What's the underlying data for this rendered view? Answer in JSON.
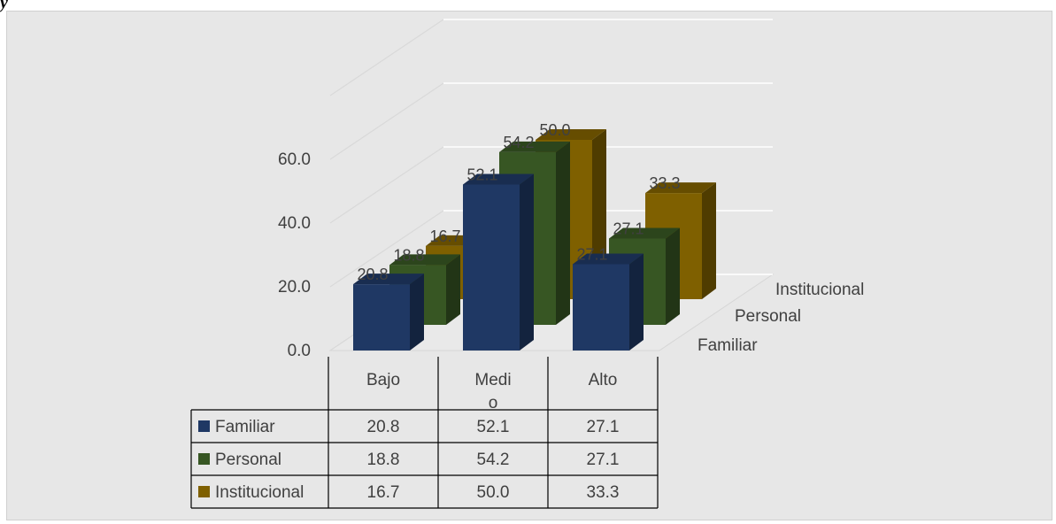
{
  "caption": "ÿ",
  "colors": {
    "Familiar": "#1f3864",
    "Personal": "#375623",
    "Institucional": "#7f6000",
    "background": "#e7e7e7"
  },
  "chart_data": {
    "type": "bar",
    "style": "3d-clustered-column-with-data-table",
    "categories": [
      "Bajo",
      "Medio",
      "Alto"
    ],
    "category_labels_display": [
      "Bajo",
      "Medi\no",
      "Alto"
    ],
    "series": [
      {
        "name": "Familiar",
        "values": [
          20.8,
          52.1,
          27.1
        ]
      },
      {
        "name": "Personal",
        "values": [
          18.8,
          54.2,
          27.1
        ]
      },
      {
        "name": "Institucional",
        "values": [
          16.7,
          50.0,
          33.3
        ]
      }
    ],
    "yticks": [
      "0.0",
      "20.0",
      "40.0",
      "60.0"
    ],
    "ylim": [
      0,
      80
    ],
    "title": "",
    "xlabel": "",
    "ylabel": "",
    "grid": true,
    "legend": "data-table"
  }
}
